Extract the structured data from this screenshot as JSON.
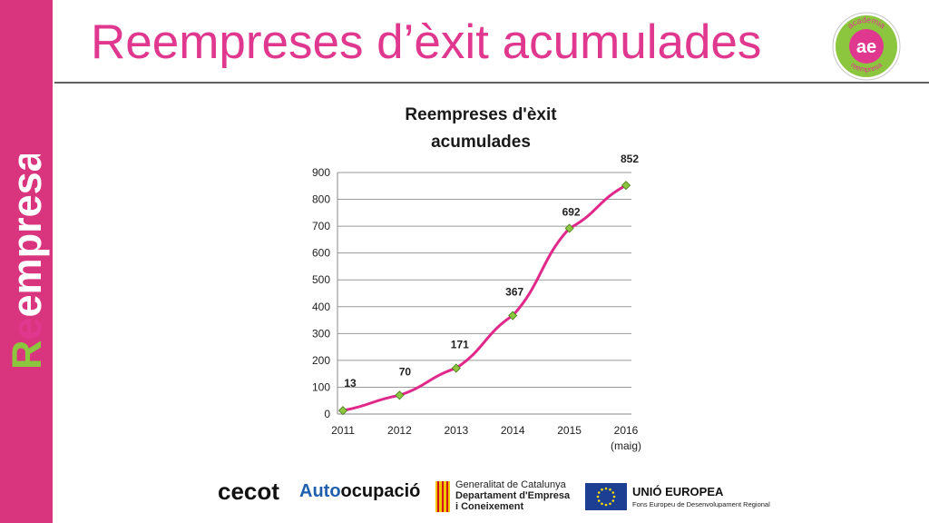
{
  "sidebar": {
    "brand_text": "Reempresa"
  },
  "header": {
    "title": "Reempreses d’èxit acumulades"
  },
  "badge": {
    "top_text": "academia",
    "monogram": "ae",
    "bottom_text": "reempresa"
  },
  "chart_data": {
    "type": "line",
    "title": "Reempreses d'èxit acumulades",
    "categories": [
      "2011",
      "2012",
      "2013",
      "2014",
      "2015",
      "2016 (maig)"
    ],
    "category_lines": [
      [
        "2011"
      ],
      [
        "2012"
      ],
      [
        "2013"
      ],
      [
        "2014"
      ],
      [
        "2015"
      ],
      [
        "2016",
        "(maig)"
      ]
    ],
    "series": [
      {
        "values": [
          13,
          70,
          171,
          367,
          692,
          852
        ]
      }
    ],
    "data_labels": [
      "13",
      "70",
      "171",
      "367",
      "692",
      "852"
    ],
    "ylim": [
      0,
      900
    ],
    "yticks": [
      0,
      100,
      200,
      300,
      400,
      500,
      600,
      700,
      800,
      900
    ],
    "grid": true,
    "line_color": "#e0278a",
    "marker_color": "#8cc63f"
  },
  "footer": {
    "cecot": "cecot",
    "autoocupacio_prefix": "Auto",
    "autoocupacio_suffix": "ocupació",
    "generalitat_line1": "Generalitat de Catalunya",
    "generalitat_line2": "Departament d'Empresa",
    "generalitat_line3": "i Coneixement",
    "eu_title": "UNIÓ EUROPEA",
    "eu_subtitle": "Fons Europeu de Desenvolupament Regional"
  }
}
